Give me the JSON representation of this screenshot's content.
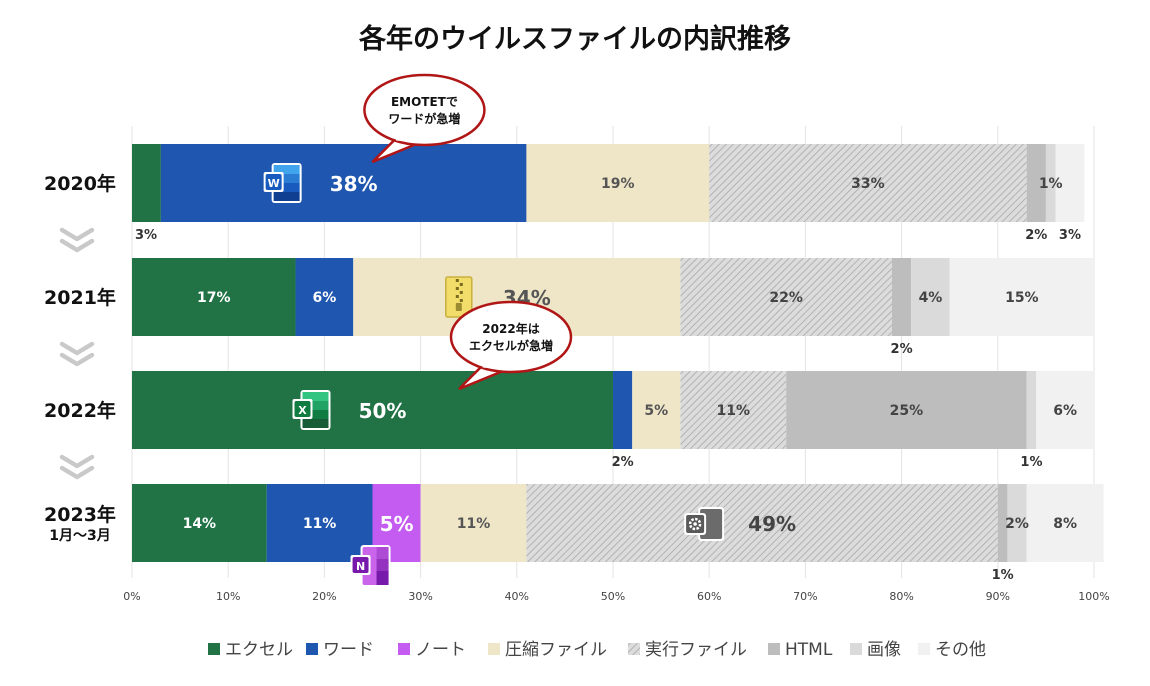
{
  "chart_data": {
    "type": "bar",
    "stacked": true,
    "orientation": "horizontal",
    "title": "各年のウイルスファイルの内訳推移",
    "categories": [
      "2020年",
      "2021年",
      "2022年",
      "2023年"
    ],
    "category_sublabels": [
      "",
      "",
      "",
      "1月～3月"
    ],
    "xlim": [
      0,
      100
    ],
    "xticks": [
      "0%",
      "10%",
      "20%",
      "30%",
      "40%",
      "50%",
      "60%",
      "70%",
      "80%",
      "90%",
      "100%"
    ],
    "grid": true,
    "legend_position": "bottom",
    "series": [
      {
        "name": "エクセル",
        "color": "#217346",
        "values": [
          3,
          17,
          50,
          14
        ]
      },
      {
        "name": "ワード",
        "color": "#1f56b0",
        "values": [
          38,
          6,
          2,
          11
        ]
      },
      {
        "name": "ノート",
        "color": "#c45cf2",
        "values": [
          0,
          0,
          0,
          5
        ]
      },
      {
        "name": "圧縮ファイル",
        "color": "#efe6c8",
        "values": [
          19,
          34,
          5,
          11
        ]
      },
      {
        "name": "実行ファイル",
        "color": "#d2d2d2",
        "pattern": "hatch",
        "values": [
          33,
          22,
          11,
          49
        ]
      },
      {
        "name": "HTML",
        "color": "#bdbdbd",
        "values": [
          2,
          2,
          25,
          1
        ]
      },
      {
        "name": "画像",
        "color": "#dadada",
        "values": [
          1,
          4,
          1,
          2
        ]
      },
      {
        "name": "その他",
        "color": "#f1f1f1",
        "values": [
          3,
          15,
          6,
          8
        ]
      }
    ],
    "data_labels": [
      {
        "row": 0,
        "series": 0,
        "text": "3%",
        "where": "below",
        "big": false
      },
      {
        "row": 0,
        "series": 1,
        "text": "38%",
        "where": "inside",
        "big": true,
        "color": "#ffffff",
        "icon": "word-icon"
      },
      {
        "row": 0,
        "series": 3,
        "text": "19%",
        "where": "inside",
        "big": false,
        "color": "#555555"
      },
      {
        "row": 0,
        "series": 4,
        "text": "33%",
        "where": "inside",
        "big": false,
        "color": "#444444"
      },
      {
        "row": 0,
        "series": 5,
        "text": "2%",
        "where": "below",
        "big": false
      },
      {
        "row": 0,
        "series": 6,
        "text": "1%",
        "where": "inside",
        "big": false,
        "color": "#444444"
      },
      {
        "row": 0,
        "series": 7,
        "text": "3%",
        "where": "below",
        "big": false
      },
      {
        "row": 1,
        "series": 0,
        "text": "17%",
        "where": "inside",
        "big": false,
        "color": "#ffffff"
      },
      {
        "row": 1,
        "series": 1,
        "text": "6%",
        "where": "inside",
        "big": false,
        "color": "#ffffff"
      },
      {
        "row": 1,
        "series": 3,
        "text": "34%",
        "where": "inside",
        "big": true,
        "color": "#555555",
        "icon": "zip-icon"
      },
      {
        "row": 1,
        "series": 4,
        "text": "22%",
        "where": "inside",
        "big": false,
        "color": "#444444"
      },
      {
        "row": 1,
        "series": 5,
        "text": "2%",
        "where": "below",
        "big": false
      },
      {
        "row": 1,
        "series": 6,
        "text": "4%",
        "where": "inside",
        "big": false,
        "color": "#444444"
      },
      {
        "row": 1,
        "series": 7,
        "text": "15%",
        "where": "inside",
        "big": false,
        "color": "#444444"
      },
      {
        "row": 2,
        "series": 0,
        "text": "50%",
        "where": "inside",
        "big": true,
        "color": "#ffffff",
        "icon": "excel-icon"
      },
      {
        "row": 2,
        "series": 1,
        "text": "2%",
        "where": "below",
        "big": false
      },
      {
        "row": 2,
        "series": 3,
        "text": "5%",
        "where": "inside",
        "big": false,
        "color": "#555555"
      },
      {
        "row": 2,
        "series": 4,
        "text": "11%",
        "where": "inside",
        "big": false,
        "color": "#444444"
      },
      {
        "row": 2,
        "series": 5,
        "text": "25%",
        "where": "inside",
        "big": false,
        "color": "#444444"
      },
      {
        "row": 2,
        "series": 6,
        "text": "1%",
        "where": "below",
        "big": false
      },
      {
        "row": 2,
        "series": 7,
        "text": "6%",
        "where": "inside",
        "big": false,
        "color": "#444444"
      },
      {
        "row": 3,
        "series": 0,
        "text": "14%",
        "where": "inside",
        "big": false,
        "color": "#ffffff"
      },
      {
        "row": 3,
        "series": 1,
        "text": "11%",
        "where": "inside",
        "big": false,
        "color": "#ffffff"
      },
      {
        "row": 3,
        "series": 2,
        "text": "5%",
        "where": "inside",
        "big": true,
        "color": "#ffffff",
        "icon": "onenote-icon"
      },
      {
        "row": 3,
        "series": 3,
        "text": "11%",
        "where": "inside",
        "big": false,
        "color": "#555555"
      },
      {
        "row": 3,
        "series": 4,
        "text": "49%",
        "where": "inside",
        "big": true,
        "color": "#444444",
        "icon": "executable-icon"
      },
      {
        "row": 3,
        "series": 5,
        "text": "1%",
        "where": "below",
        "big": false
      },
      {
        "row": 3,
        "series": 6,
        "text": "2%",
        "where": "inside",
        "big": false,
        "color": "#444444"
      },
      {
        "row": 3,
        "series": 7,
        "text": "8%",
        "where": "inside",
        "big": false,
        "color": "#444444"
      }
    ],
    "annotations": [
      {
        "row": 0,
        "series": 1,
        "lines": [
          "EMOTETで",
          "ワードが急増"
        ]
      },
      {
        "row": 2,
        "series": 0,
        "lines": [
          "2022年は",
          "エクセルが急増"
        ]
      }
    ]
  }
}
